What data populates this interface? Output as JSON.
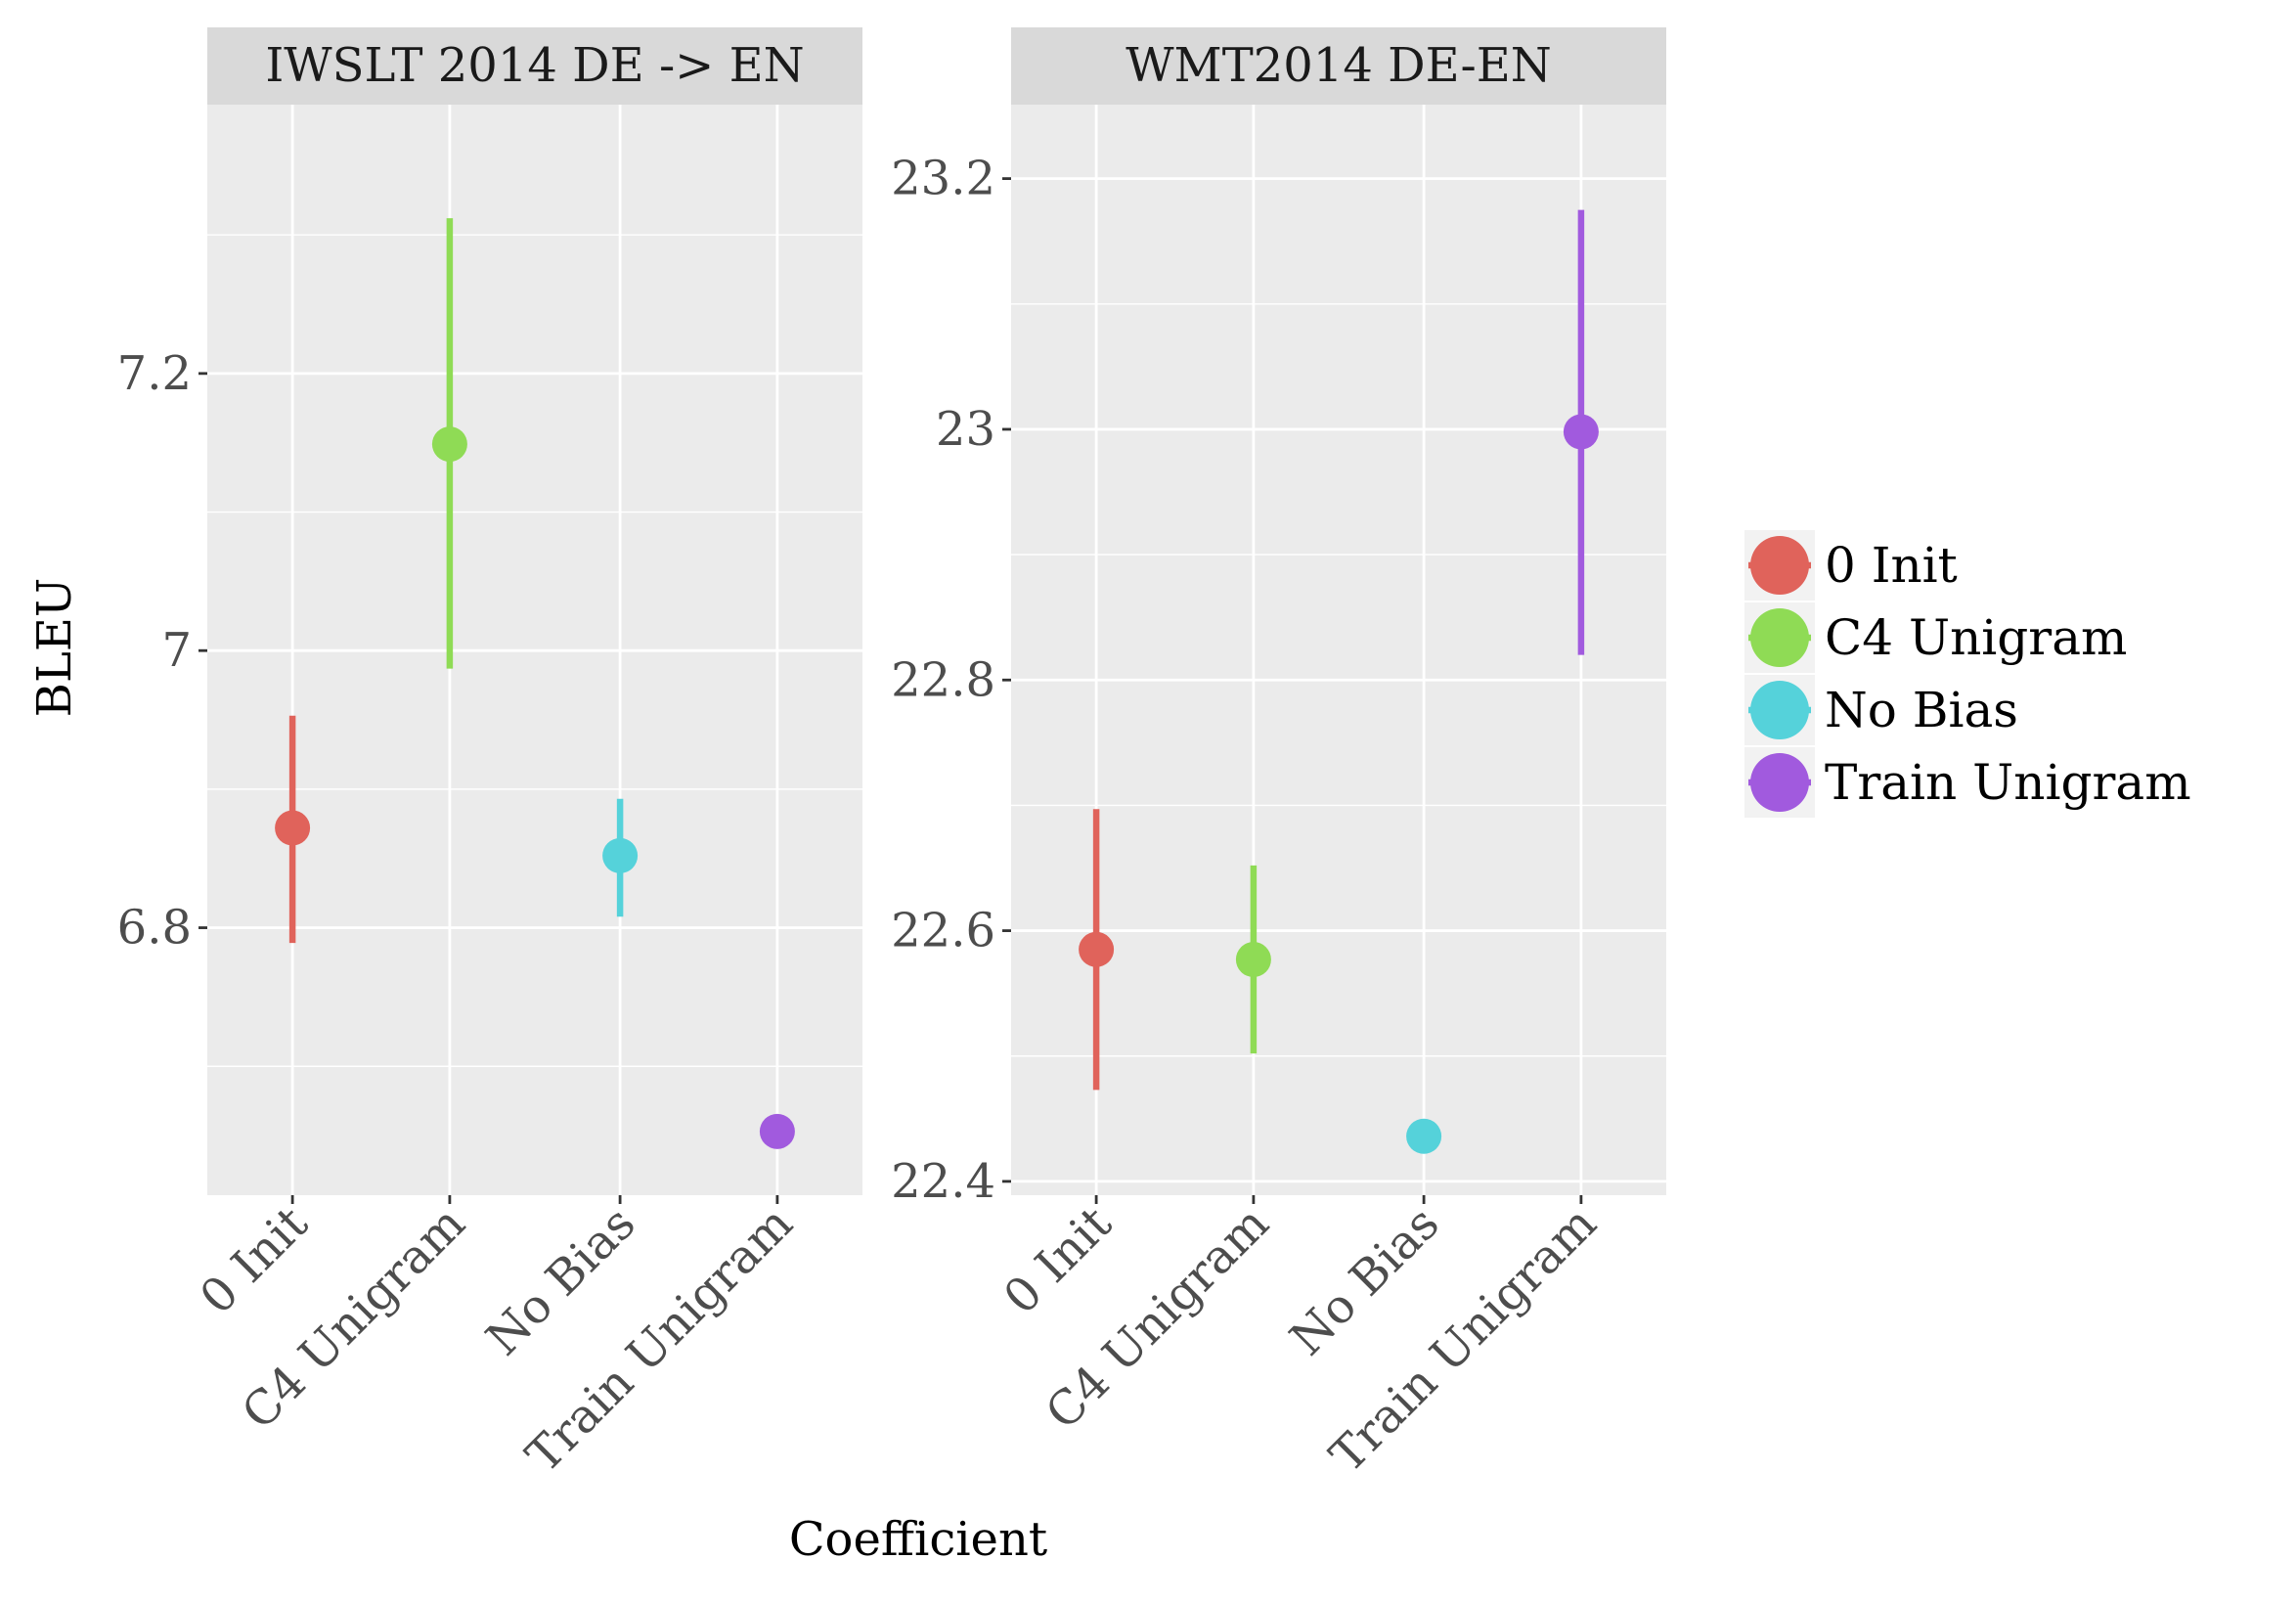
{
  "chart_data": {
    "type": "scatter",
    "subtype": "pointrange",
    "ylabel": "BLEU",
    "xlabel": "Coefficient",
    "categories": [
      "0 Init",
      "C4 Unigram",
      "No Bias",
      "Train Unigram"
    ],
    "legend": {
      "position": "right",
      "entries": [
        {
          "name": "0 Init",
          "color": "#E0635B"
        },
        {
          "name": "C4 Unigram",
          "color": "#8FDB55"
        },
        {
          "name": "No Bias",
          "color": "#55D2DA"
        },
        {
          "name": "Train Unigram",
          "color": "#A15ADE"
        }
      ]
    },
    "panels": [
      {
        "title": "IWSLT 2014 DE -> EN",
        "ylim": [
          6.607,
          7.394
        ],
        "yticks": [
          6.8,
          7.0,
          7.2
        ],
        "ytick_labels": [
          "6.8",
          "7",
          "7.2"
        ],
        "points": [
          {
            "category": "0 Init",
            "y": 6.872,
            "ymin": 6.789,
            "ymax": 6.953
          },
          {
            "category": "C4 Unigram",
            "y": 7.149,
            "ymin": 6.987,
            "ymax": 7.312
          },
          {
            "category": "No Bias",
            "y": 6.852,
            "ymin": 6.808,
            "ymax": 6.893
          },
          {
            "category": "Train Unigram",
            "y": 6.653,
            "ymin": 6.651,
            "ymax": 6.665
          }
        ]
      },
      {
        "title": "WMT2014 DE-EN",
        "ylim": [
          22.389,
          23.259
        ],
        "yticks": [
          22.4,
          22.6,
          22.8,
          23.0,
          23.2
        ],
        "ytick_labels": [
          "22.4",
          "22.6",
          "22.8",
          "23",
          "23.2"
        ],
        "points": [
          {
            "category": "0 Init",
            "y": 22.585,
            "ymin": 22.473,
            "ymax": 22.697
          },
          {
            "category": "C4 Unigram",
            "y": 22.577,
            "ymin": 22.502,
            "ymax": 22.652
          },
          {
            "category": "No Bias",
            "y": 22.436,
            "ymin": 22.436,
            "ymax": 22.436
          },
          {
            "category": "Train Unigram",
            "y": 22.998,
            "ymin": 22.82,
            "ymax": 23.175
          }
        ]
      }
    ],
    "grid": true,
    "background": "#EBEBEB",
    "strip_background": "#D9D9D9"
  }
}
